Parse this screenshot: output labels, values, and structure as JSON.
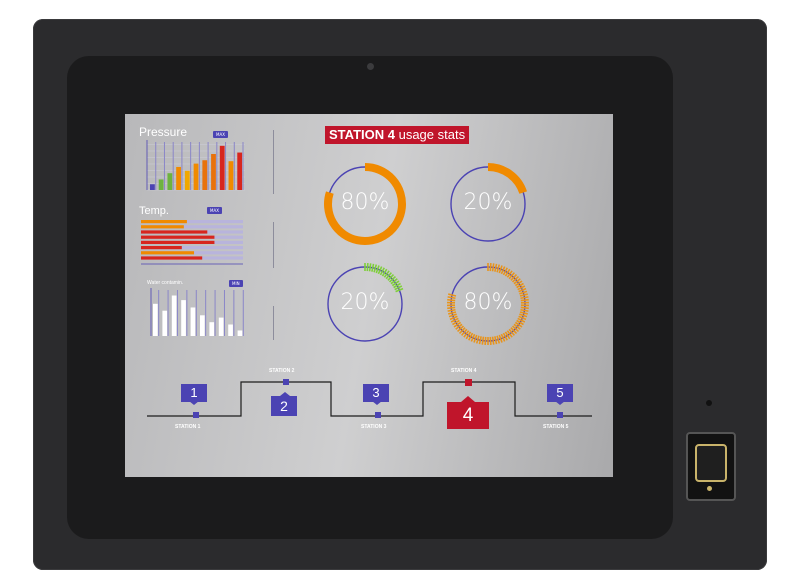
{
  "header": {
    "station": "STATION 4",
    "title_rest": "usage stats"
  },
  "pressure": {
    "label": "Pressure",
    "badge": "MAX",
    "bars": [
      {
        "value": 0.12,
        "color": "#4b43b3"
      },
      {
        "value": 0.22,
        "color": "#6db33f"
      },
      {
        "value": 0.35,
        "color": "#6db33f"
      },
      {
        "value": 0.48,
        "color": "#f08a00"
      },
      {
        "value": 0.4,
        "color": "#f0a800"
      },
      {
        "value": 0.55,
        "color": "#f08a00"
      },
      {
        "value": 0.62,
        "color": "#e8720c"
      },
      {
        "value": 0.75,
        "color": "#e8720c"
      },
      {
        "value": 0.92,
        "color": "#d7261e"
      },
      {
        "value": 0.6,
        "color": "#f08a00"
      },
      {
        "value": 0.78,
        "color": "#d7261e"
      }
    ]
  },
  "temp": {
    "label": "Temp.",
    "badge": "MAX",
    "rows": [
      {
        "value": 0.45,
        "color": "#f08a00"
      },
      {
        "value": 0.42,
        "color": "#f08a00"
      },
      {
        "value": 0.65,
        "color": "#d7261e"
      },
      {
        "value": 0.72,
        "color": "#d7261e"
      },
      {
        "value": 0.72,
        "color": "#d7261e"
      },
      {
        "value": 0.4,
        "color": "#d7261e"
      },
      {
        "value": 0.52,
        "color": "#f08a00"
      },
      {
        "value": 0.6,
        "color": "#d7261e"
      }
    ]
  },
  "water": {
    "label": "Water contamin.",
    "badge": "MIN",
    "bars": [
      0.7,
      0.55,
      0.88,
      0.78,
      0.62,
      0.45,
      0.3,
      0.4,
      0.25,
      0.12
    ]
  },
  "gauges": [
    {
      "text": "80%",
      "value": 0.8,
      "color": "#f08a00",
      "style": "solid"
    },
    {
      "text": "20%",
      "value": 0.2,
      "color": "#f08a00",
      "style": "solid"
    },
    {
      "text": "20%",
      "value": 0.2,
      "color": "#7fcf3a",
      "style": "ticks"
    },
    {
      "text": "80%",
      "value": 0.8,
      "color": "#e8941c",
      "style": "ticks"
    }
  ],
  "stations": [
    {
      "number": "1",
      "name": "STATION 1"
    },
    {
      "number": "2",
      "name": "STATION 2"
    },
    {
      "number": "3",
      "name": "STATION 3"
    },
    {
      "number": "4",
      "name": "STATION 4"
    },
    {
      "number": "5",
      "name": "STATION 5"
    }
  ],
  "colors": {
    "accent": "#4b43b3",
    "alert": "#c0152b",
    "orange": "#f08a00"
  }
}
